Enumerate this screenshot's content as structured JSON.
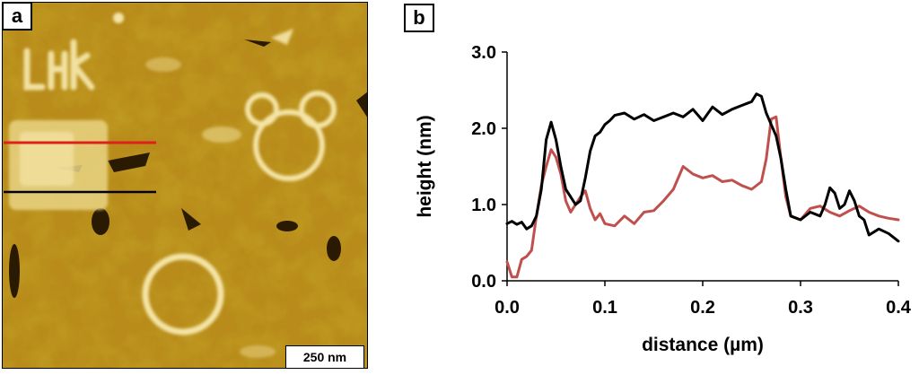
{
  "panels": {
    "a": {
      "label": "a",
      "scale_bar": "250 nm"
    },
    "b": {
      "label": "b"
    }
  },
  "colors": {
    "afm_base": "#b88b1a",
    "afm_light": "#f4e4a6",
    "black_profile": "#000000",
    "red_profile": "#c0504d",
    "red_line": "#e0201a"
  },
  "chart_data": {
    "type": "line",
    "title": "",
    "xlabel": "distance (µm)",
    "ylabel": "height (nm)",
    "xlim": [
      0.0,
      0.4
    ],
    "ylim": [
      0.0,
      3.0
    ],
    "xticks": [
      0.0,
      0.1,
      0.2,
      0.3,
      0.4
    ],
    "xtick_labels": [
      "0.0",
      "0.1",
      "0.2",
      "0.3",
      "0.4"
    ],
    "yticks": [
      0.0,
      1.0,
      2.0,
      3.0
    ],
    "ytick_labels": [
      "0.0",
      "1.0",
      "2.0",
      "3.0"
    ],
    "grid": false,
    "legend": "none",
    "series": [
      {
        "name": "black line profile",
        "color": "#000000",
        "x": [
          0.0,
          0.005,
          0.01,
          0.015,
          0.02,
          0.025,
          0.03,
          0.035,
          0.04,
          0.045,
          0.05,
          0.055,
          0.06,
          0.065,
          0.07,
          0.075,
          0.08,
          0.085,
          0.09,
          0.095,
          0.1,
          0.105,
          0.11,
          0.12,
          0.13,
          0.14,
          0.15,
          0.16,
          0.17,
          0.18,
          0.19,
          0.2,
          0.21,
          0.22,
          0.23,
          0.24,
          0.25,
          0.255,
          0.26,
          0.265,
          0.27,
          0.275,
          0.28,
          0.285,
          0.29,
          0.3,
          0.31,
          0.32,
          0.325,
          0.33,
          0.335,
          0.34,
          0.345,
          0.35,
          0.355,
          0.36,
          0.365,
          0.37,
          0.38,
          0.39,
          0.4
        ],
        "y": [
          0.75,
          0.78,
          0.74,
          0.77,
          0.68,
          0.72,
          0.85,
          1.2,
          1.85,
          2.08,
          1.85,
          1.5,
          1.2,
          1.1,
          1.0,
          1.05,
          1.35,
          1.7,
          1.9,
          1.95,
          2.05,
          2.1,
          2.17,
          2.2,
          2.12,
          2.18,
          2.1,
          2.15,
          2.2,
          2.15,
          2.25,
          2.1,
          2.28,
          2.18,
          2.25,
          2.3,
          2.35,
          2.45,
          2.42,
          2.2,
          2.05,
          1.9,
          1.6,
          1.2,
          0.85,
          0.8,
          0.9,
          0.85,
          1.0,
          1.22,
          1.15,
          0.95,
          1.0,
          1.18,
          1.05,
          0.85,
          0.8,
          0.6,
          0.68,
          0.62,
          0.52
        ]
      },
      {
        "name": "red line profile",
        "color": "#c0504d",
        "x": [
          0.0,
          0.005,
          0.01,
          0.015,
          0.02,
          0.025,
          0.03,
          0.035,
          0.04,
          0.045,
          0.05,
          0.055,
          0.06,
          0.065,
          0.07,
          0.075,
          0.08,
          0.085,
          0.09,
          0.095,
          0.1,
          0.11,
          0.12,
          0.13,
          0.14,
          0.15,
          0.16,
          0.17,
          0.18,
          0.19,
          0.2,
          0.21,
          0.22,
          0.23,
          0.24,
          0.25,
          0.26,
          0.265,
          0.27,
          0.275,
          0.28,
          0.285,
          0.29,
          0.3,
          0.31,
          0.32,
          0.33,
          0.34,
          0.35,
          0.36,
          0.37,
          0.38,
          0.39,
          0.4
        ],
        "y": [
          0.25,
          0.05,
          0.05,
          0.28,
          0.32,
          0.4,
          0.85,
          1.25,
          1.5,
          1.72,
          1.62,
          1.4,
          1.05,
          0.9,
          1.0,
          1.1,
          1.18,
          0.95,
          0.8,
          0.88,
          0.75,
          0.72,
          0.85,
          0.75,
          0.9,
          0.92,
          1.05,
          1.2,
          1.5,
          1.4,
          1.35,
          1.38,
          1.3,
          1.32,
          1.25,
          1.2,
          1.3,
          1.6,
          2.12,
          2.15,
          1.6,
          1.1,
          0.85,
          0.8,
          0.95,
          0.98,
          0.9,
          0.85,
          0.92,
          0.98,
          0.9,
          0.85,
          0.82,
          0.8
        ]
      }
    ]
  }
}
